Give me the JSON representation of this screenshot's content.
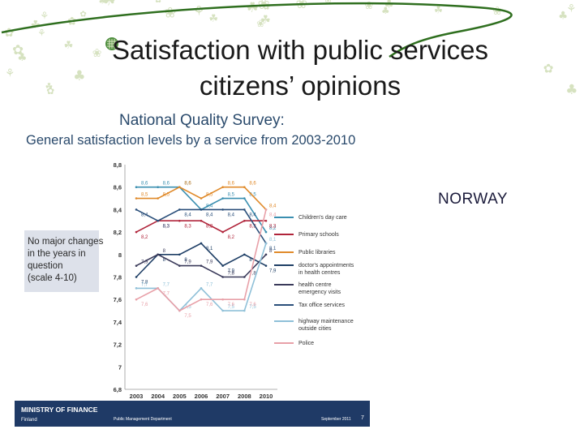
{
  "slide": {
    "title_line1": "Satisfaction with public services",
    "title_line2": "citizens’ opinions",
    "country": "NORWAY",
    "page_number": "7",
    "accent_color": "#3f7f1f"
  },
  "survey": {
    "title_line1": "National Quality Survey:",
    "title_line2": "General satisfaction levels by a service from 2003-2010",
    "note_lines": [
      "No major changes",
      "in the years in",
      "question",
      "(scale 4-10)"
    ],
    "footer_org_line1": "MINISTRY OF FINANCE",
    "footer_org_line2": "Finland",
    "footer_dept": "Public Management Department",
    "footer_date": "September 2011"
  },
  "chart_data": {
    "type": "line",
    "x": [
      "2003",
      "2004",
      "2005",
      "2006",
      "2007",
      "2008",
      "2010"
    ],
    "ylim": [
      6.8,
      8.8
    ],
    "yticks": [
      "8,8",
      "8,6",
      "8,4",
      "8,2",
      "8",
      "7,8",
      "7,6",
      "7,4",
      "7,2",
      "7",
      "6,8"
    ],
    "series": [
      {
        "name": "Children's day care",
        "color": "#3a8fb0",
        "values": [
          8.6,
          8.6,
          8.6,
          8.4,
          8.5,
          8.5,
          8.2
        ],
        "labels": [
          "8,6",
          "8,6",
          "8,6",
          "8,4",
          "8,5",
          "8,5",
          "8,2"
        ]
      },
      {
        "name": "Primary schools",
        "color": "#b0243a",
        "values": [
          8.2,
          8.3,
          8.3,
          8.3,
          8.2,
          8.3,
          8.3
        ],
        "labels": [
          "8,2",
          "8,3",
          "8,3",
          "8,3",
          "8,2",
          "8,3",
          "8,3"
        ]
      },
      {
        "name": "Public libraries",
        "color": "#e08a2a",
        "values": [
          8.5,
          8.5,
          8.6,
          8.5,
          8.6,
          8.6,
          8.4
        ],
        "labels": [
          "8,5",
          "8,5",
          "8,6",
          "8,5",
          "8,6",
          "8,6",
          "8,4"
        ]
      },
      {
        "name": "doctor's appointments in health centres",
        "color": "#1f3f66",
        "values": [
          7.8,
          8.0,
          8.0,
          8.1,
          7.9,
          8.0,
          7.9
        ],
        "labels": [
          "7,8",
          "8",
          "8",
          "8,1",
          "7,9",
          "8",
          "7,9"
        ]
      },
      {
        "name": "health centre emergency visits",
        "color": "#3a3a5a",
        "values": [
          7.9,
          8.0,
          7.9,
          7.9,
          7.8,
          7.8,
          8.0
        ],
        "labels": [
          "7,9",
          "8",
          "7,9",
          "7,9",
          "7,8",
          "7,8",
          "8"
        ]
      },
      {
        "name": "Tax office services",
        "color": "#2a4f7a",
        "values": [
          8.4,
          8.3,
          8.4,
          8.4,
          8.4,
          8.4,
          8.1
        ],
        "labels": [
          "8,4",
          "8,3",
          "8,4",
          "8,4",
          "8,4",
          "8,4",
          "8,1"
        ]
      },
      {
        "name": "highway maintenance outside cities",
        "color": "#8fc0d8",
        "values": [
          7.7,
          7.7,
          7.5,
          7.7,
          7.5,
          7.5,
          8.1
        ],
        "labels": [
          "7,7",
          "7,7",
          "7,5",
          "7,7",
          "7,5",
          "7,5",
          "8,1"
        ]
      },
      {
        "name": "Police",
        "color": "#e8a0a8",
        "values": [
          7.6,
          7.7,
          7.5,
          7.6,
          7.6,
          7.6,
          8.4
        ],
        "labels": [
          "7,6",
          "7,7",
          "7,5",
          "7,6",
          "7,6",
          "7,6",
          "8,4"
        ]
      }
    ]
  }
}
